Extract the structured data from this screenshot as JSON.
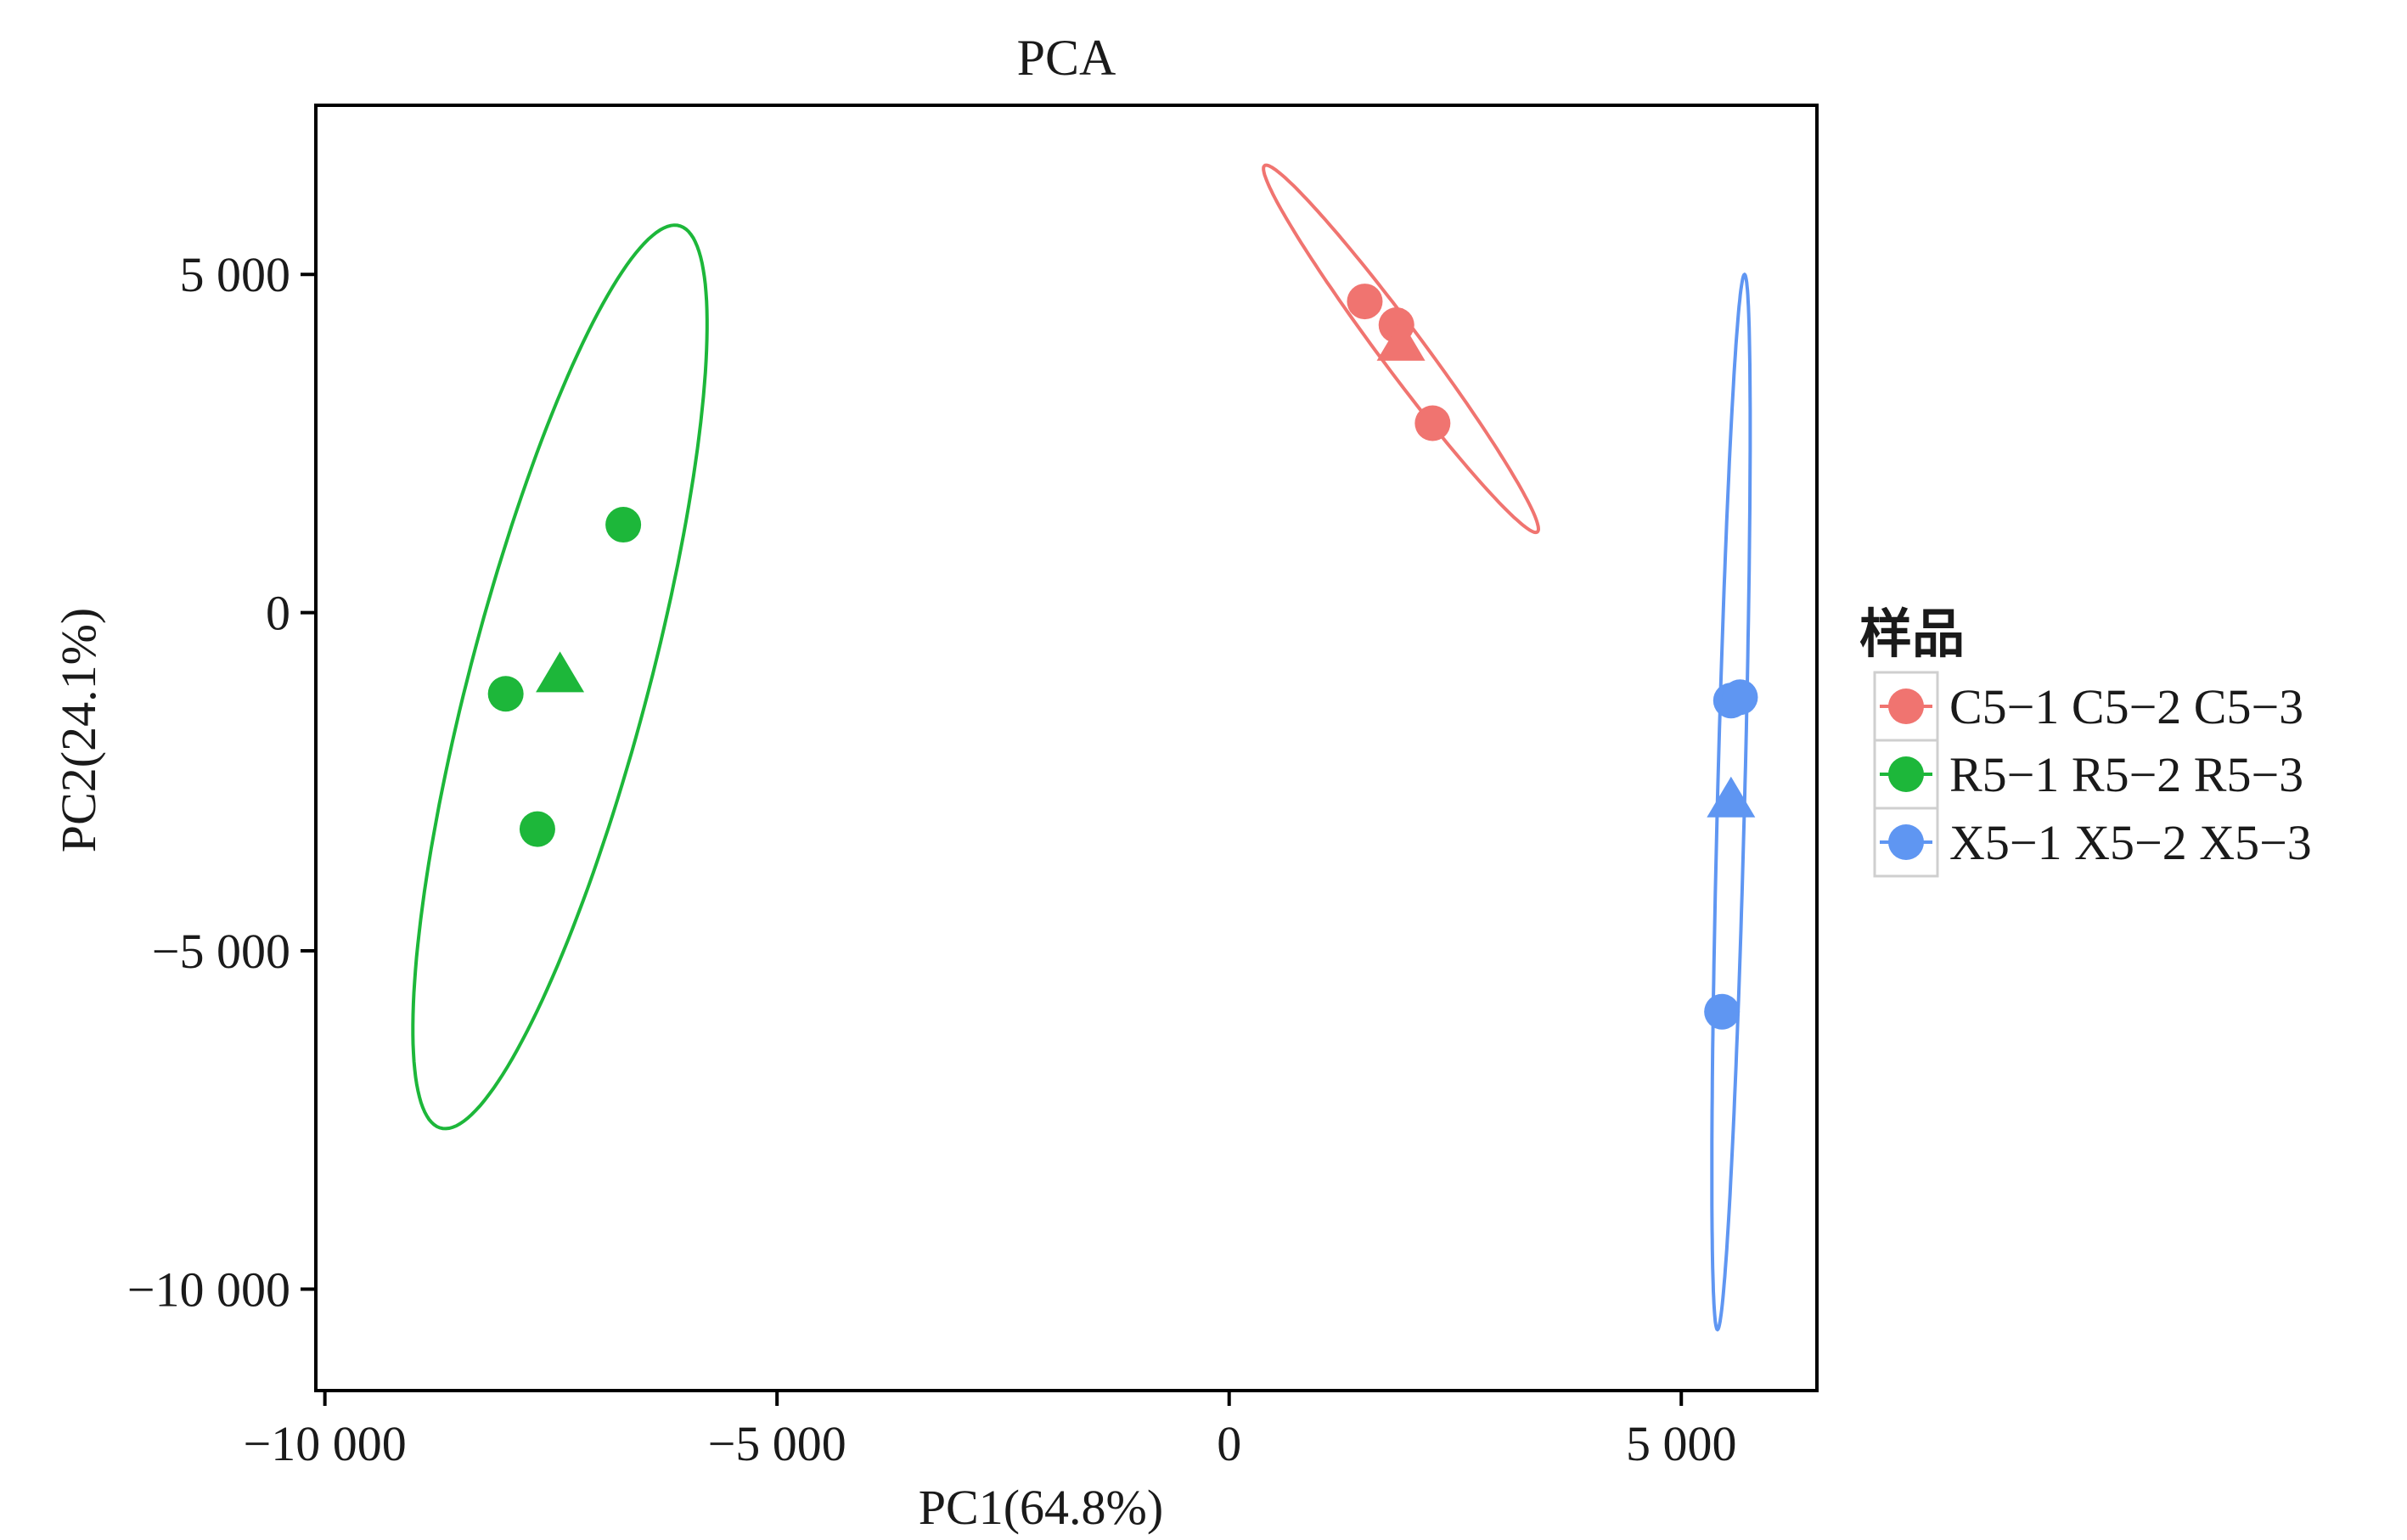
{
  "chart_data": {
    "type": "scatter",
    "title": "PCA",
    "xlabel": "PC1(64.8%)",
    "ylabel": "PC2(24.1%)",
    "xlim": [
      -10100,
      6500
    ],
    "ylim": [
      -11500,
      7500
    ],
    "xticks": [
      {
        "value": -10000,
        "label": "−10 000"
      },
      {
        "value": -5000,
        "label": "−5 000"
      },
      {
        "value": 0,
        "label": "0"
      },
      {
        "value": 5000,
        "label": "5 000"
      }
    ],
    "yticks": [
      {
        "value": 5000,
        "label": "5 000"
      },
      {
        "value": 0,
        "label": "0"
      },
      {
        "value": -5000,
        "label": "−5 000"
      },
      {
        "value": -10000,
        "label": "−10 000"
      }
    ],
    "grid": false,
    "legend": {
      "title": "样品",
      "position": "right"
    },
    "series": [
      {
        "name": "C5−1 C5−2 C5−3",
        "color": "#F07470",
        "points": [
          {
            "x": 1500,
            "y": 4600,
            "marker": "circle"
          },
          {
            "x": 1850,
            "y": 4250,
            "marker": "circle"
          },
          {
            "x": 1900,
            "y": 3950,
            "marker": "triangle"
          },
          {
            "x": 2250,
            "y": 2800,
            "marker": "circle"
          }
        ],
        "ellipse": {
          "cx": 1900,
          "cy": 3900,
          "a": 3100,
          "b": 260,
          "angle_deg": -61
        }
      },
      {
        "name": "R5−1 R5−2 R5−3",
        "color": "#1DB73A",
        "points": [
          {
            "x": -6700,
            "y": 1300,
            "marker": "circle"
          },
          {
            "x": -8000,
            "y": -1200,
            "marker": "circle"
          },
          {
            "x": -7400,
            "y": -950,
            "marker": "triangle"
          },
          {
            "x": -7650,
            "y": -3200,
            "marker": "circle"
          }
        ],
        "ellipse": {
          "cx": -7400,
          "cy": -950,
          "a": 6800,
          "b": 1000,
          "angle_deg": 79
        }
      },
      {
        "name": "X5−1 X5−2 X5−3",
        "color": "#5F96F2",
        "points": [
          {
            "x": 5550,
            "y": -1300,
            "marker": "circle"
          },
          {
            "x": 5650,
            "y": -1250,
            "marker": "circle"
          },
          {
            "x": 5550,
            "y": -2800,
            "marker": "triangle"
          },
          {
            "x": 5450,
            "y": -5900,
            "marker": "circle"
          }
        ],
        "ellipse": {
          "cx": 5550,
          "cy": -2800,
          "a": 7800,
          "b": 150,
          "angle_deg": 88.9
        }
      }
    ]
  }
}
